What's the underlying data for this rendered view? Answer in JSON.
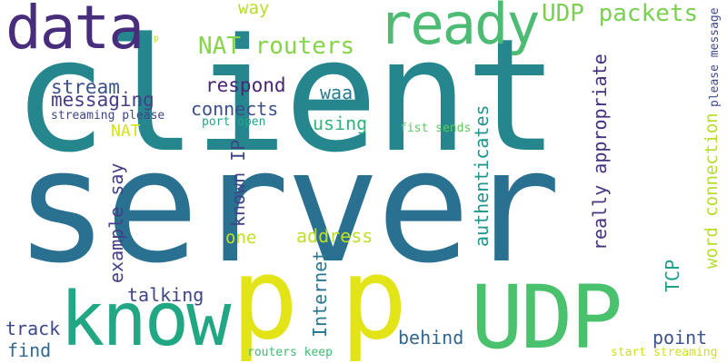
{
  "words": [
    {
      "id": "client",
      "text": "client",
      "color": "#25878d"
    },
    {
      "id": "server",
      "text": "server",
      "color": "#2a7090"
    },
    {
      "id": "data",
      "text": "data",
      "color": "#472d7b"
    },
    {
      "id": "ready",
      "text": "ready",
      "color": "#4cbc74"
    },
    {
      "id": "know",
      "text": "know",
      "color": "#22a785"
    },
    {
      "id": "p1",
      "text": "p",
      "color": "#e3e418"
    },
    {
      "id": "p2",
      "text": "p",
      "color": "#e3e418"
    },
    {
      "id": "udp",
      "text": "UDP",
      "color": "#4ac16d"
    },
    {
      "id": "udp-packets",
      "text": "UDP packets",
      "color": "#7ad151"
    },
    {
      "id": "nat-routers",
      "text": "NAT routers",
      "color": "#86d549"
    },
    {
      "id": "way",
      "text": "way",
      "color": "#b5de2b"
    },
    {
      "id": "stream",
      "text": "stream",
      "color": "#3b518b"
    },
    {
      "id": "messaging",
      "text": "messaging",
      "color": "#433e85"
    },
    {
      "id": "respond",
      "text": "respond",
      "color": "#482576"
    },
    {
      "id": "waay",
      "text": "waay",
      "color": "#287c8e"
    },
    {
      "id": "connects",
      "text": "connects",
      "color": "#3d4e8a"
    },
    {
      "id": "streaming-please",
      "text": "streaming please",
      "color": "#404588"
    },
    {
      "id": "port-open",
      "text": "port open",
      "color": "#21a685"
    },
    {
      "id": "using",
      "text": "using",
      "color": "#2eb37c"
    },
    {
      "id": "fist-sends",
      "text": "fist sends",
      "color": "#5ec962"
    },
    {
      "id": "nat",
      "text": "NAT",
      "color": "#d8e219"
    },
    {
      "id": "p-small",
      "text": "p",
      "color": "#b8de29"
    },
    {
      "id": "address",
      "text": "address",
      "color": "#bddf26"
    },
    {
      "id": "one",
      "text": "one",
      "color": "#c2df23"
    },
    {
      "id": "talking",
      "text": "talking",
      "color": "#414487"
    },
    {
      "id": "track",
      "text": "track",
      "color": "#3e4989"
    },
    {
      "id": "find",
      "text": "find",
      "color": "#31688e"
    },
    {
      "id": "behind",
      "text": "behind",
      "color": "#31668e"
    },
    {
      "id": "point",
      "text": "point",
      "color": "#3b528b"
    },
    {
      "id": "routers-keep",
      "text": "routers keep",
      "color": "#3fbc73"
    },
    {
      "id": "start-streaming",
      "text": "start streaming",
      "color": "#d0e11c"
    },
    {
      "id": "example-say",
      "text": "example say",
      "color": "#424086"
    },
    {
      "id": "known-ip",
      "text": "known IP",
      "color": "#414487"
    },
    {
      "id": "internet",
      "text": "Internet",
      "color": "#2a788e"
    },
    {
      "id": "authenticates",
      "text": "authenticates",
      "color": "#1f968b"
    },
    {
      "id": "really-appropriate",
      "text": "really appropriate",
      "color": "#46327e"
    },
    {
      "id": "word-connection",
      "text": "word connection",
      "color": "#b5de2b"
    },
    {
      "id": "tcp",
      "text": "TCP",
      "color": "#1fa088"
    },
    {
      "id": "please-message",
      "text": "please message",
      "color": "#3e4a89"
    }
  ]
}
